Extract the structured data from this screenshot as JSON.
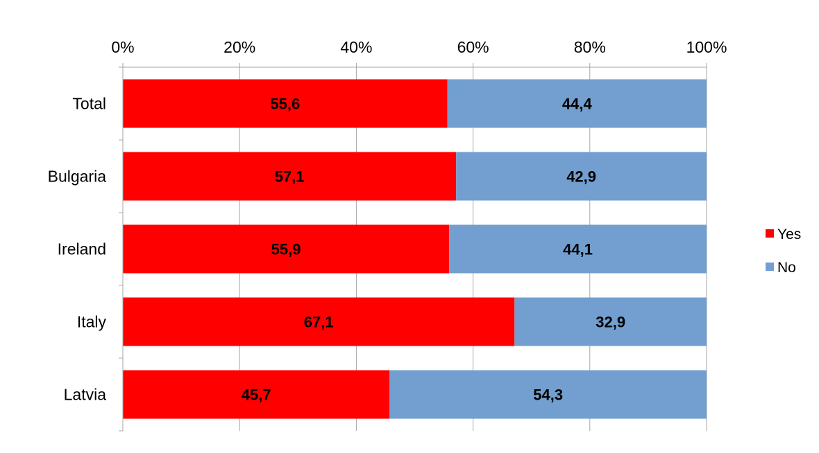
{
  "chart_data": {
    "type": "bar",
    "orientation": "horizontal",
    "stacked": "percent",
    "title": "",
    "xlabel": "",
    "ylabel": "",
    "xlim": [
      0,
      100
    ],
    "x_ticks": [
      "0%",
      "20%",
      "40%",
      "60%",
      "80%",
      "100%"
    ],
    "x_tick_values": [
      0,
      20,
      40,
      60,
      80,
      100
    ],
    "x_axis_position": "top",
    "grid": true,
    "legend_position": "right",
    "categories": [
      "Total",
      "Bulgaria",
      "Ireland",
      "Italy",
      "Latvia"
    ],
    "series": [
      {
        "name": "Yes",
        "color": "#ff0000",
        "values": [
          55.6,
          57.1,
          55.9,
          67.1,
          45.7
        ],
        "labels": [
          "55,6",
          "57,1",
          "55,9",
          "67,1",
          "45,7"
        ]
      },
      {
        "name": "No",
        "color": "#729fcf",
        "values": [
          44.4,
          42.9,
          44.1,
          32.9,
          54.3
        ],
        "labels": [
          "44,4",
          "42,9",
          "44,1",
          "32,9",
          "54,3"
        ]
      }
    ]
  }
}
